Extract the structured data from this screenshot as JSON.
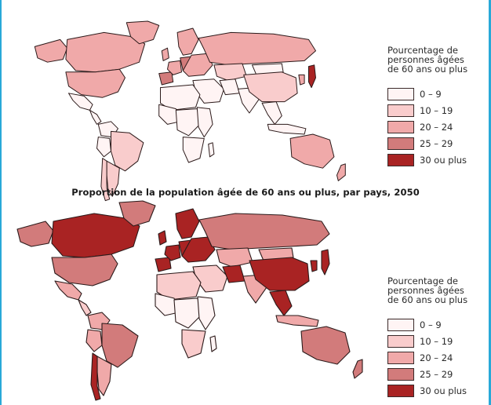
{
  "title": "Proportion de la population âgée de 60 ans ou plus, par pays, 2050",
  "legend": {
    "title_lines": [
      "Pourcentage de",
      "personnes âgées",
      "de 60 ans ou plus"
    ],
    "items": [
      {
        "label": "0 – 9",
        "color": "#fff4f4"
      },
      {
        "label": "10 – 19",
        "color": "#f9cccc"
      },
      {
        "label": "20 – 24",
        "color": "#f0a9a9"
      },
      {
        "label": "25 – 29",
        "color": "#d27b7b"
      },
      {
        "label": "30 ou plus",
        "color": "#a92323"
      }
    ]
  },
  "maps": [
    {
      "id": "top",
      "regions": {
        "canada": "20 – 24",
        "usa": "20 – 24",
        "mexico": "0 – 9",
        "central_america": "0 – 9",
        "greenland": "20 – 24",
        "alaska": "20 – 24",
        "colombia": "0 – 9",
        "brazil": "10 – 19",
        "peru": "0 – 9",
        "argentina": "10 – 19",
        "chile": "10 – 19",
        "iberia": "25 – 29",
        "france": "20 – 24",
        "germany": "25 – 29",
        "uk": "20 – 24",
        "scandinavia": "20 – 24",
        "eastern_europe": "20 – 24",
        "russia": "20 – 24",
        "kazakhstan": "10 – 19",
        "middle_east": "0 – 9",
        "iran": "0 – 9",
        "north_africa": "0 – 9",
        "west_africa": "0 – 9",
        "central_africa": "0 – 9",
        "east_africa": "0 – 9",
        "southern_africa": "0 – 9",
        "madagascar": "0 – 9",
        "india": "0 – 9",
        "china": "10 – 19",
        "mongolia": "0 – 9",
        "southeast_asia": "0 – 9",
        "korea": "20 – 24",
        "japan": "30 ou plus",
        "indonesia": "0 – 9",
        "australia": "20 – 24",
        "new_zealand": "20 – 24"
      }
    },
    {
      "id": "bottom",
      "regions": {
        "canada": "30 ou plus",
        "usa": "25 – 29",
        "mexico": "20 – 24",
        "central_america": "10 – 19",
        "greenland": "25 – 29",
        "alaska": "25 – 29",
        "colombia": "20 – 24",
        "brazil": "25 – 29",
        "peru": "20 – 24",
        "argentina": "20 – 24",
        "chile": "30 ou plus",
        "iberia": "30 ou plus",
        "france": "30 ou plus",
        "germany": "30 ou plus",
        "uk": "30 ou plus",
        "scandinavia": "30 ou plus",
        "eastern_europe": "30 ou plus",
        "russia": "25 – 29",
        "kazakhstan": "20 – 24",
        "middle_east": "10 – 19",
        "iran": "30 ou plus",
        "north_africa": "10 – 19",
        "west_africa": "0 – 9",
        "central_africa": "0 – 9",
        "east_africa": "0 – 9",
        "southern_africa": "10 – 19",
        "madagascar": "0 – 9",
        "india": "20 – 24",
        "china": "30 ou plus",
        "mongolia": "20 – 24",
        "southeast_asia": "30 ou plus",
        "korea": "30 ou plus",
        "japan": "30 ou plus",
        "indonesia": "20 – 24",
        "australia": "25 – 29",
        "new_zealand": "25 – 29"
      }
    }
  ]
}
